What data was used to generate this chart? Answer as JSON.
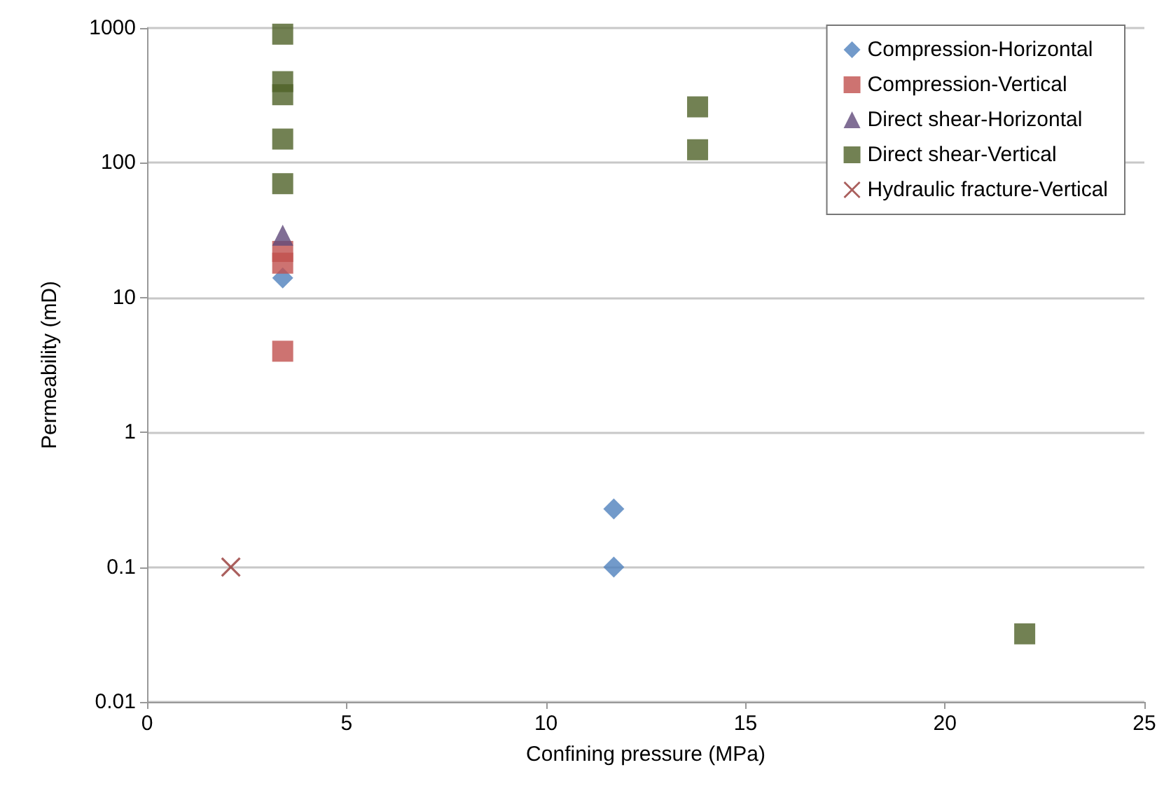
{
  "chart_data": {
    "type": "scatter",
    "xlabel": "Confining pressure (MPa)",
    "ylabel": "Permeability (mD)",
    "xlim": [
      0,
      25
    ],
    "xticks": [
      0,
      5,
      10,
      15,
      20,
      25
    ],
    "ylim": [
      0.01,
      1000
    ],
    "yticks": [
      0.01,
      0.1,
      1,
      10,
      100,
      1000
    ],
    "log": "y",
    "grid": "y",
    "legend": "top right",
    "series": [
      {
        "name": "Compression-Horizontal",
        "color": "#4f81bd",
        "marker": "diamond",
        "x": [
          3.4,
          11.7,
          11.7
        ],
        "values": [
          14,
          0.27,
          0.1
        ]
      },
      {
        "name": "Compression-Vertical",
        "color": "#c0504d",
        "marker": "square",
        "x": [
          3.4,
          3.4,
          3.4
        ],
        "values": [
          22,
          18,
          4
        ]
      },
      {
        "name": "Direct shear-Horizontal",
        "color": "#604a7b",
        "marker": "triangle",
        "x": [
          3.4
        ],
        "values": [
          29
        ]
      },
      {
        "name": "Direct shear-Vertical",
        "color": "#4f6228",
        "marker": "square",
        "x": [
          3.4,
          3.4,
          3.4,
          3.4,
          3.4,
          13.8,
          13.8,
          22
        ],
        "values": [
          900,
          400,
          320,
          150,
          70,
          260,
          125,
          0.032
        ]
      },
      {
        "name": "Hydraulic fracture-Vertical",
        "color": "#953735",
        "marker": "cross",
        "x": [
          2.1
        ],
        "values": [
          0.1
        ]
      }
    ]
  }
}
